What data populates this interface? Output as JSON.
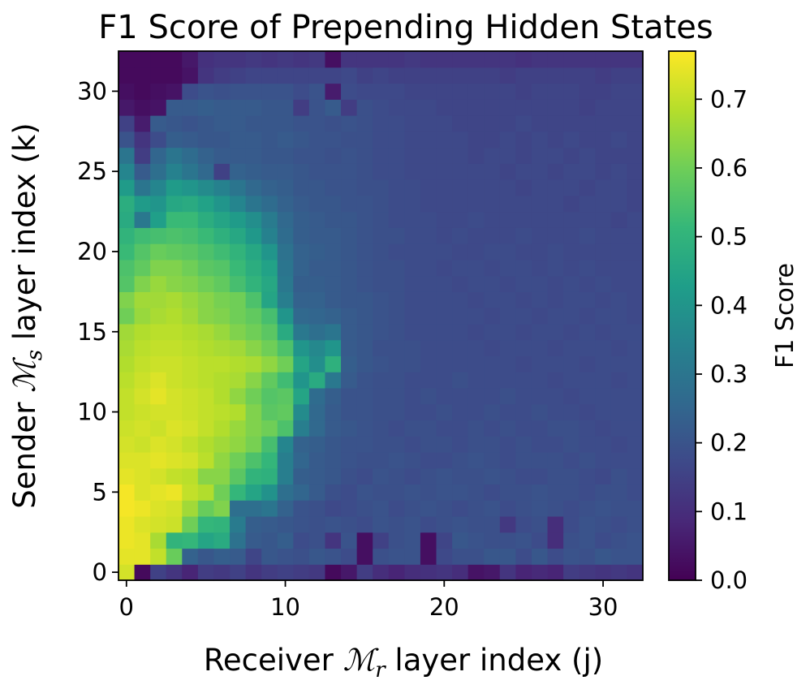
{
  "chart_data": {
    "type": "heatmap",
    "title": "F1 Score of Prepending Hidden States",
    "xlabel": {
      "prefix": "Receiver ",
      "math": "ℳ",
      "sub": "r",
      "suffix": " layer index (j)"
    },
    "ylabel": {
      "prefix": "Sender ",
      "math": "ℳ",
      "sub": "s",
      "suffix": " layer index (k)"
    },
    "colorbar_label": "F1 Score",
    "x_range": [
      0,
      32
    ],
    "y_range": [
      0,
      32
    ],
    "x_ticks": [
      "0",
      "10",
      "20",
      "30"
    ],
    "y_ticks": [
      "0",
      "5",
      "10",
      "15",
      "20",
      "25",
      "30"
    ],
    "color_range": [
      0.0,
      0.77
    ],
    "colorbar_ticks": [
      "0.0",
      "0.1",
      "0.2",
      "0.3",
      "0.4",
      "0.5",
      "0.6",
      "0.7"
    ],
    "colormap": "viridis",
    "colormap_stops": [
      "#440154",
      "#482878",
      "#3e4989",
      "#31688e",
      "#26828e",
      "#1f9e89",
      "#35b779",
      "#6ece58",
      "#b5de2b",
      "#fde725"
    ],
    "grid": false,
    "values": [
      [
        0.72,
        0.02,
        0.15,
        0.12,
        0.08,
        0.14,
        0.13,
        0.15,
        0.12,
        0.14,
        0.15,
        0.14,
        0.13,
        0.02,
        0.05,
        0.14,
        0.1,
        0.08,
        0.1,
        0.11,
        0.12,
        0.1,
        0.04,
        0.05,
        0.12,
        0.08,
        0.09,
        0.08,
        0.14,
        0.13,
        0.12,
        0.13,
        0.12
      ],
      [
        0.74,
        0.74,
        0.7,
        0.59,
        0.24,
        0.21,
        0.23,
        0.22,
        0.16,
        0.21,
        0.2,
        0.19,
        0.21,
        0.2,
        0.18,
        0.03,
        0.19,
        0.2,
        0.2,
        0.03,
        0.17,
        0.19,
        0.19,
        0.21,
        0.21,
        0.18,
        0.21,
        0.18,
        0.2,
        0.19,
        0.21,
        0.2,
        0.2
      ],
      [
        0.75,
        0.74,
        0.67,
        0.5,
        0.51,
        0.45,
        0.47,
        0.29,
        0.22,
        0.21,
        0.23,
        0.18,
        0.19,
        0.12,
        0.2,
        0.03,
        0.15,
        0.19,
        0.2,
        0.03,
        0.16,
        0.21,
        0.2,
        0.19,
        0.19,
        0.2,
        0.18,
        0.1,
        0.19,
        0.2,
        0.18,
        0.19,
        0.2
      ],
      [
        0.75,
        0.73,
        0.72,
        0.71,
        0.6,
        0.51,
        0.5,
        0.32,
        0.23,
        0.22,
        0.21,
        0.2,
        0.19,
        0.2,
        0.19,
        0.18,
        0.2,
        0.19,
        0.2,
        0.18,
        0.19,
        0.2,
        0.19,
        0.19,
        0.13,
        0.18,
        0.19,
        0.1,
        0.18,
        0.2,
        0.19,
        0.18,
        0.19
      ],
      [
        0.76,
        0.75,
        0.73,
        0.72,
        0.66,
        0.59,
        0.62,
        0.28,
        0.28,
        0.3,
        0.24,
        0.2,
        0.19,
        0.17,
        0.18,
        0.19,
        0.2,
        0.18,
        0.19,
        0.2,
        0.19,
        0.18,
        0.19,
        0.2,
        0.18,
        0.19,
        0.2,
        0.19,
        0.18,
        0.19,
        0.2,
        0.19,
        0.19
      ],
      [
        0.76,
        0.73,
        0.74,
        0.75,
        0.7,
        0.68,
        0.6,
        0.51,
        0.45,
        0.39,
        0.28,
        0.25,
        0.22,
        0.19,
        0.18,
        0.2,
        0.19,
        0.19,
        0.2,
        0.19,
        0.2,
        0.2,
        0.19,
        0.18,
        0.19,
        0.19,
        0.2,
        0.19,
        0.19,
        0.18,
        0.19,
        0.19,
        0.18
      ],
      [
        0.74,
        0.73,
        0.72,
        0.7,
        0.69,
        0.63,
        0.63,
        0.57,
        0.5,
        0.49,
        0.33,
        0.23,
        0.22,
        0.21,
        0.19,
        0.18,
        0.2,
        0.19,
        0.18,
        0.19,
        0.2,
        0.19,
        0.19,
        0.2,
        0.19,
        0.18,
        0.18,
        0.19,
        0.19,
        0.18,
        0.17,
        0.19,
        0.18
      ],
      [
        0.73,
        0.73,
        0.74,
        0.73,
        0.72,
        0.69,
        0.64,
        0.6,
        0.55,
        0.51,
        0.33,
        0.25,
        0.22,
        0.21,
        0.2,
        0.19,
        0.19,
        0.2,
        0.19,
        0.18,
        0.18,
        0.19,
        0.2,
        0.19,
        0.18,
        0.19,
        0.19,
        0.19,
        0.18,
        0.19,
        0.18,
        0.18,
        0.18
      ],
      [
        0.72,
        0.71,
        0.73,
        0.72,
        0.7,
        0.68,
        0.66,
        0.64,
        0.61,
        0.54,
        0.35,
        0.24,
        0.23,
        0.21,
        0.2,
        0.2,
        0.19,
        0.19,
        0.18,
        0.19,
        0.19,
        0.18,
        0.19,
        0.19,
        0.18,
        0.19,
        0.18,
        0.18,
        0.19,
        0.18,
        0.18,
        0.17,
        0.18
      ],
      [
        0.71,
        0.72,
        0.71,
        0.73,
        0.72,
        0.7,
        0.68,
        0.65,
        0.62,
        0.6,
        0.55,
        0.33,
        0.26,
        0.22,
        0.21,
        0.2,
        0.19,
        0.18,
        0.19,
        0.19,
        0.18,
        0.18,
        0.19,
        0.18,
        0.19,
        0.18,
        0.18,
        0.19,
        0.19,
        0.18,
        0.17,
        0.18,
        0.18
      ],
      [
        0.7,
        0.71,
        0.72,
        0.72,
        0.71,
        0.7,
        0.69,
        0.68,
        0.62,
        0.57,
        0.58,
        0.37,
        0.26,
        0.22,
        0.2,
        0.2,
        0.19,
        0.19,
        0.18,
        0.18,
        0.19,
        0.18,
        0.18,
        0.19,
        0.18,
        0.18,
        0.19,
        0.18,
        0.18,
        0.17,
        0.18,
        0.18,
        0.18
      ],
      [
        0.7,
        0.72,
        0.74,
        0.72,
        0.71,
        0.7,
        0.68,
        0.64,
        0.6,
        0.56,
        0.57,
        0.45,
        0.27,
        0.23,
        0.2,
        0.2,
        0.19,
        0.19,
        0.18,
        0.19,
        0.18,
        0.18,
        0.18,
        0.18,
        0.19,
        0.18,
        0.18,
        0.18,
        0.17,
        0.18,
        0.18,
        0.18,
        0.18
      ],
      [
        0.69,
        0.71,
        0.73,
        0.71,
        0.7,
        0.69,
        0.68,
        0.67,
        0.63,
        0.58,
        0.53,
        0.4,
        0.47,
        0.31,
        0.22,
        0.2,
        0.19,
        0.19,
        0.18,
        0.18,
        0.18,
        0.19,
        0.18,
        0.18,
        0.18,
        0.18,
        0.18,
        0.17,
        0.18,
        0.18,
        0.18,
        0.17,
        0.18
      ],
      [
        0.68,
        0.7,
        0.71,
        0.71,
        0.7,
        0.69,
        0.69,
        0.68,
        0.67,
        0.64,
        0.6,
        0.45,
        0.38,
        0.49,
        0.23,
        0.21,
        0.2,
        0.19,
        0.19,
        0.18,
        0.18,
        0.18,
        0.18,
        0.18,
        0.18,
        0.17,
        0.18,
        0.18,
        0.18,
        0.17,
        0.18,
        0.18,
        0.18
      ],
      [
        0.67,
        0.69,
        0.7,
        0.7,
        0.69,
        0.68,
        0.67,
        0.66,
        0.63,
        0.6,
        0.55,
        0.4,
        0.36,
        0.4,
        0.22,
        0.21,
        0.19,
        0.19,
        0.19,
        0.18,
        0.18,
        0.18,
        0.18,
        0.17,
        0.18,
        0.18,
        0.18,
        0.17,
        0.18,
        0.18,
        0.18,
        0.17,
        0.18
      ],
      [
        0.66,
        0.68,
        0.69,
        0.69,
        0.68,
        0.67,
        0.65,
        0.62,
        0.6,
        0.57,
        0.47,
        0.31,
        0.28,
        0.3,
        0.22,
        0.21,
        0.2,
        0.19,
        0.18,
        0.18,
        0.18,
        0.18,
        0.17,
        0.18,
        0.18,
        0.17,
        0.18,
        0.18,
        0.17,
        0.18,
        0.17,
        0.18,
        0.18
      ],
      [
        0.6,
        0.65,
        0.67,
        0.68,
        0.66,
        0.63,
        0.62,
        0.6,
        0.58,
        0.54,
        0.4,
        0.26,
        0.25,
        0.24,
        0.22,
        0.21,
        0.2,
        0.19,
        0.18,
        0.18,
        0.18,
        0.18,
        0.18,
        0.17,
        0.18,
        0.18,
        0.17,
        0.18,
        0.18,
        0.17,
        0.18,
        0.18,
        0.17
      ],
      [
        0.62,
        0.66,
        0.66,
        0.67,
        0.65,
        0.63,
        0.61,
        0.6,
        0.55,
        0.45,
        0.33,
        0.24,
        0.24,
        0.22,
        0.21,
        0.21,
        0.2,
        0.19,
        0.18,
        0.18,
        0.18,
        0.18,
        0.17,
        0.18,
        0.18,
        0.17,
        0.18,
        0.17,
        0.18,
        0.18,
        0.17,
        0.18,
        0.17
      ],
      [
        0.56,
        0.62,
        0.65,
        0.63,
        0.62,
        0.6,
        0.58,
        0.54,
        0.5,
        0.46,
        0.31,
        0.23,
        0.23,
        0.22,
        0.21,
        0.2,
        0.19,
        0.19,
        0.18,
        0.18,
        0.18,
        0.17,
        0.18,
        0.18,
        0.17,
        0.18,
        0.18,
        0.17,
        0.18,
        0.17,
        0.18,
        0.17,
        0.17
      ],
      [
        0.55,
        0.58,
        0.62,
        0.62,
        0.6,
        0.57,
        0.56,
        0.52,
        0.48,
        0.44,
        0.3,
        0.24,
        0.22,
        0.22,
        0.21,
        0.2,
        0.19,
        0.19,
        0.18,
        0.18,
        0.17,
        0.18,
        0.18,
        0.17,
        0.18,
        0.18,
        0.17,
        0.18,
        0.17,
        0.18,
        0.17,
        0.17,
        0.17
      ],
      [
        0.52,
        0.56,
        0.59,
        0.58,
        0.57,
        0.55,
        0.53,
        0.5,
        0.46,
        0.4,
        0.29,
        0.24,
        0.23,
        0.22,
        0.21,
        0.2,
        0.19,
        0.18,
        0.18,
        0.18,
        0.18,
        0.17,
        0.17,
        0.18,
        0.18,
        0.17,
        0.17,
        0.18,
        0.17,
        0.17,
        0.17,
        0.17,
        0.17
      ],
      [
        0.5,
        0.53,
        0.54,
        0.55,
        0.54,
        0.52,
        0.49,
        0.46,
        0.41,
        0.34,
        0.27,
        0.23,
        0.22,
        0.22,
        0.21,
        0.2,
        0.19,
        0.19,
        0.18,
        0.18,
        0.17,
        0.18,
        0.17,
        0.17,
        0.17,
        0.18,
        0.17,
        0.17,
        0.17,
        0.18,
        0.17,
        0.17,
        0.17
      ],
      [
        0.47,
        0.31,
        0.43,
        0.52,
        0.52,
        0.48,
        0.45,
        0.42,
        0.38,
        0.32,
        0.26,
        0.23,
        0.22,
        0.21,
        0.21,
        0.2,
        0.19,
        0.18,
        0.18,
        0.18,
        0.17,
        0.17,
        0.18,
        0.17,
        0.17,
        0.17,
        0.17,
        0.17,
        0.17,
        0.17,
        0.17,
        0.16,
        0.17
      ],
      [
        0.48,
        0.42,
        0.4,
        0.46,
        0.47,
        0.44,
        0.4,
        0.35,
        0.3,
        0.27,
        0.24,
        0.22,
        0.21,
        0.21,
        0.2,
        0.2,
        0.19,
        0.18,
        0.18,
        0.17,
        0.17,
        0.17,
        0.17,
        0.17,
        0.17,
        0.17,
        0.17,
        0.17,
        0.16,
        0.17,
        0.17,
        0.17,
        0.16
      ],
      [
        0.42,
        0.3,
        0.35,
        0.42,
        0.4,
        0.37,
        0.34,
        0.3,
        0.26,
        0.24,
        0.23,
        0.21,
        0.21,
        0.2,
        0.2,
        0.19,
        0.19,
        0.18,
        0.18,
        0.17,
        0.17,
        0.17,
        0.17,
        0.17,
        0.17,
        0.16,
        0.17,
        0.17,
        0.17,
        0.16,
        0.17,
        0.17,
        0.16
      ],
      [
        0.35,
        0.22,
        0.28,
        0.34,
        0.3,
        0.26,
        0.15,
        0.24,
        0.23,
        0.22,
        0.22,
        0.21,
        0.2,
        0.2,
        0.2,
        0.19,
        0.18,
        0.18,
        0.17,
        0.17,
        0.17,
        0.17,
        0.17,
        0.17,
        0.16,
        0.17,
        0.17,
        0.16,
        0.17,
        0.17,
        0.16,
        0.17,
        0.16
      ],
      [
        0.3,
        0.14,
        0.25,
        0.3,
        0.27,
        0.24,
        0.22,
        0.22,
        0.22,
        0.21,
        0.21,
        0.2,
        0.2,
        0.19,
        0.2,
        0.19,
        0.18,
        0.18,
        0.17,
        0.17,
        0.17,
        0.17,
        0.16,
        0.17,
        0.17,
        0.16,
        0.17,
        0.17,
        0.16,
        0.17,
        0.16,
        0.16,
        0.16
      ],
      [
        0.2,
        0.12,
        0.18,
        0.23,
        0.22,
        0.21,
        0.21,
        0.22,
        0.22,
        0.21,
        0.22,
        0.21,
        0.2,
        0.2,
        0.19,
        0.19,
        0.18,
        0.18,
        0.17,
        0.17,
        0.17,
        0.17,
        0.16,
        0.16,
        0.17,
        0.16,
        0.17,
        0.16,
        0.17,
        0.16,
        0.16,
        0.17,
        0.16
      ],
      [
        0.15,
        0.06,
        0.22,
        0.21,
        0.2,
        0.21,
        0.22,
        0.22,
        0.21,
        0.21,
        0.21,
        0.2,
        0.2,
        0.19,
        0.2,
        0.19,
        0.18,
        0.18,
        0.17,
        0.17,
        0.17,
        0.16,
        0.16,
        0.16,
        0.16,
        0.17,
        0.16,
        0.16,
        0.16,
        0.16,
        0.16,
        0.16,
        0.16
      ],
      [
        0.05,
        0.03,
        0.04,
        0.22,
        0.22,
        0.23,
        0.22,
        0.22,
        0.22,
        0.21,
        0.21,
        0.14,
        0.2,
        0.22,
        0.14,
        0.19,
        0.18,
        0.17,
        0.17,
        0.17,
        0.16,
        0.16,
        0.16,
        0.16,
        0.16,
        0.16,
        0.16,
        0.16,
        0.16,
        0.15,
        0.16,
        0.16,
        0.16
      ],
      [
        0.03,
        0.02,
        0.03,
        0.04,
        0.18,
        0.2,
        0.19,
        0.2,
        0.2,
        0.2,
        0.2,
        0.18,
        0.2,
        0.06,
        0.18,
        0.17,
        0.17,
        0.17,
        0.16,
        0.16,
        0.16,
        0.16,
        0.16,
        0.16,
        0.16,
        0.15,
        0.16,
        0.16,
        0.16,
        0.15,
        0.15,
        0.16,
        0.16
      ],
      [
        0.02,
        0.02,
        0.02,
        0.02,
        0.04,
        0.12,
        0.14,
        0.15,
        0.16,
        0.16,
        0.16,
        0.16,
        0.16,
        0.16,
        0.17,
        0.15,
        0.16,
        0.15,
        0.15,
        0.15,
        0.15,
        0.15,
        0.15,
        0.15,
        0.14,
        0.15,
        0.15,
        0.15,
        0.15,
        0.15,
        0.14,
        0.15,
        0.15
      ],
      [
        0.02,
        0.02,
        0.02,
        0.02,
        0.05,
        0.11,
        0.12,
        0.12,
        0.13,
        0.12,
        0.13,
        0.12,
        0.13,
        0.03,
        0.12,
        0.12,
        0.12,
        0.12,
        0.13,
        0.12,
        0.12,
        0.12,
        0.12,
        0.12,
        0.12,
        0.11,
        0.12,
        0.12,
        0.12,
        0.12,
        0.12,
        0.12,
        0.12
      ]
    ]
  }
}
